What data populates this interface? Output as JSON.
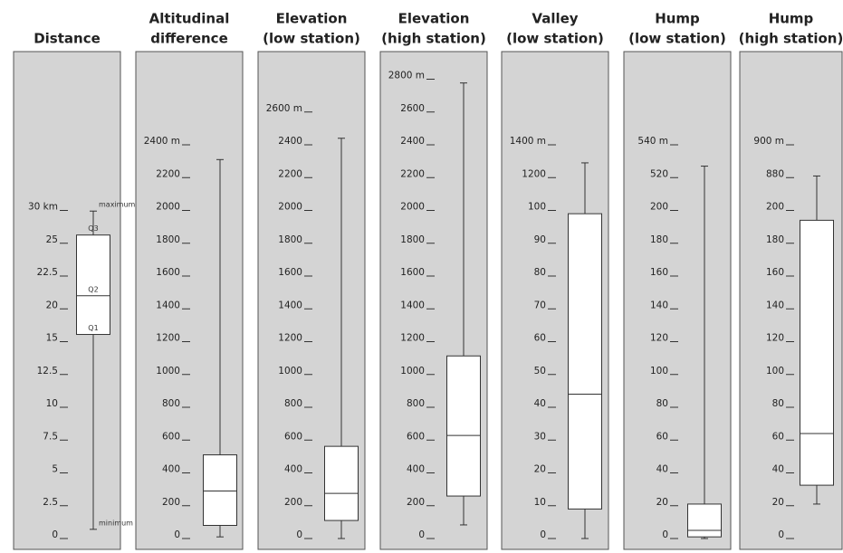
{
  "chart_data": [
    {
      "type": "box",
      "title": [
        "Distance"
      ],
      "yticks": [
        0,
        2.5,
        5,
        7.5,
        10,
        12.5,
        15,
        20,
        22.5,
        25,
        {
          "value": 30,
          "label": "30 km"
        }
      ],
      "ylim": [
        0,
        30
      ],
      "stats": {
        "min": 0.7,
        "q1": 16.1,
        "median": 21,
        "q3": 26.25,
        "max": 29.9
      },
      "annotations": {
        "max": "maximum",
        "q3": "Q3",
        "median": "Q2",
        "q1": "Q1",
        "min": "minimum"
      }
    },
    {
      "type": "box",
      "title": [
        "Altitudinal",
        "difference"
      ],
      "yticks": [
        0,
        200,
        400,
        600,
        800,
        1000,
        1200,
        1400,
        1600,
        1800,
        2000,
        2200,
        {
          "value": 2400,
          "label": "2400 m"
        }
      ],
      "ylim": [
        0,
        2400
      ],
      "stats": {
        "min": 10,
        "q1": 80,
        "median": 290,
        "q3": 510,
        "max": 2310
      }
    },
    {
      "type": "box",
      "title": [
        "Elevation",
        "(low station)"
      ],
      "yticks": [
        0,
        200,
        400,
        600,
        800,
        1000,
        1200,
        1400,
        1600,
        1800,
        2000,
        2200,
        2400,
        {
          "value": 2600,
          "label": "2600 m"
        }
      ],
      "ylim": [
        0,
        2600
      ],
      "stats": {
        "min": 0,
        "q1": 110,
        "median": 275,
        "q3": 562,
        "max": 2440
      }
    },
    {
      "type": "box",
      "title": [
        "Elevation",
        "(high station)"
      ],
      "yticks": [
        0,
        200,
        400,
        600,
        800,
        1000,
        1200,
        1400,
        1600,
        1800,
        2000,
        2200,
        2400,
        2600,
        {
          "value": 2800,
          "label": "2800 m"
        }
      ],
      "ylim": [
        0,
        2800
      ],
      "stats": {
        "min": 83,
        "q1": 259,
        "median": 628,
        "q3": 1113,
        "max": 2777
      }
    },
    {
      "type": "box",
      "title": [
        "Valley",
        "(low station)"
      ],
      "yticks": [
        0,
        10,
        20,
        30,
        40,
        50,
        60,
        70,
        80,
        90,
        100,
        1200,
        {
          "value": 1400,
          "label": "1400 m"
        }
      ],
      "ylim": [
        0,
        1400
      ],
      "stats": {
        "min": 0,
        "q1": 9,
        "median": 44,
        "q3": 99,
        "max": 1290
      }
    },
    {
      "type": "box",
      "title": [
        "Hump",
        "(low station)"
      ],
      "yticks": [
        0,
        20,
        40,
        60,
        80,
        100,
        120,
        140,
        160,
        180,
        200,
        520,
        {
          "value": 540,
          "label": "540 m"
        }
      ],
      "ylim": [
        0,
        540
      ],
      "stats": {
        "min": 0,
        "q1": 1,
        "median": 5,
        "q3": 21,
        "max": 527
      }
    },
    {
      "type": "box",
      "title": [
        "Hump",
        "(high station)"
      ],
      "yticks": [
        0,
        20,
        40,
        60,
        80,
        100,
        120,
        140,
        160,
        180,
        200,
        880,
        {
          "value": 900,
          "label": "900 m"
        }
      ],
      "ylim": [
        0,
        900
      ],
      "stats": {
        "min": 21,
        "q1": 32.5,
        "median": 64,
        "q3": 194,
        "max": 881
      }
    }
  ]
}
